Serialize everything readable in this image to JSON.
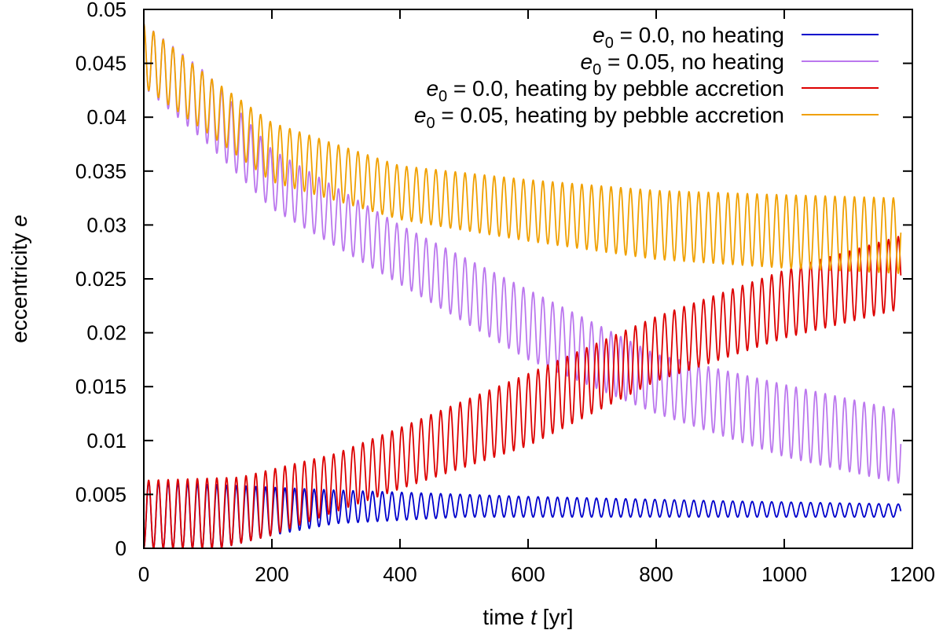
{
  "chart_data": {
    "type": "line",
    "title": "",
    "xlabel_prefix": "time ",
    "xlabel_var": "t",
    "xlabel_suffix": " [yr]",
    "ylabel_prefix": "eccentricity ",
    "ylabel_var": "e",
    "xlim": [
      0,
      1200
    ],
    "ylim": [
      0,
      0.05
    ],
    "x_ticks": [
      0,
      200,
      400,
      600,
      800,
      1000,
      1200
    ],
    "x_tick_labels": [
      "0",
      "200",
      "400",
      "600",
      "800",
      "1000",
      "1200"
    ],
    "y_ticks": [
      0,
      0.005,
      0.01,
      0.015,
      0.02,
      0.025,
      0.03,
      0.035,
      0.04,
      0.045,
      0.05
    ],
    "y_tick_labels": [
      "0",
      "0.005",
      "0.01",
      "0.015",
      "0.02",
      "0.025",
      "0.03",
      "0.035",
      "0.04",
      "0.045",
      "0.05"
    ],
    "grid": false,
    "legend_position": "top-right",
    "oscillation_period_yr": 15.2,
    "series": [
      {
        "name": "e0 = 0.0, no heating",
        "legend_var": "e",
        "legend_sub": "0",
        "legend_rest": " = 0.0, no heating",
        "color": "#0000cc",
        "x_end": 1182,
        "upper": [
          [
            0,
            0.0062
          ],
          [
            150,
            0.0058
          ],
          [
            300,
            0.0054
          ],
          [
            600,
            0.0048
          ],
          [
            900,
            0.0044
          ],
          [
            1182,
            0.0041
          ]
        ],
        "lower": [
          [
            0,
            0.0
          ],
          [
            120,
            0.0
          ],
          [
            200,
            0.0012
          ],
          [
            300,
            0.0023
          ],
          [
            500,
            0.0029
          ],
          [
            800,
            0.0029
          ],
          [
            1182,
            0.0029
          ]
        ],
        "phase": 0.5
      },
      {
        "name": "e0 = 0.05, no heating",
        "legend_var": "e",
        "legend_sub": "0",
        "legend_rest": " = 0.05, no heating",
        "color": "#bb77ee",
        "x_end": 1182,
        "upper": [
          [
            0,
            0.0487
          ],
          [
            100,
            0.044
          ],
          [
            200,
            0.037
          ],
          [
            400,
            0.03
          ],
          [
            600,
            0.024
          ],
          [
            800,
            0.018
          ],
          [
            1000,
            0.0152
          ],
          [
            1182,
            0.0128
          ]
        ],
        "lower": [
          [
            0,
            0.0428
          ],
          [
            100,
            0.0375
          ],
          [
            200,
            0.0315
          ],
          [
            400,
            0.0245
          ],
          [
            600,
            0.0175
          ],
          [
            800,
            0.0125
          ],
          [
            1000,
            0.0085
          ],
          [
            1182,
            0.006
          ]
        ],
        "phase": 0.0
      },
      {
        "name": "e0 = 0.0, heating by pebble accretion",
        "legend_var": "e",
        "legend_sub": "0",
        "legend_rest": " = 0.0, heating by pebble accretion",
        "color": "#dd0000",
        "x_end": 1182,
        "upper": [
          [
            0,
            0.0063
          ],
          [
            150,
            0.0066
          ],
          [
            300,
            0.0088
          ],
          [
            400,
            0.0112
          ],
          [
            600,
            0.0162
          ],
          [
            800,
            0.0215
          ],
          [
            1000,
            0.0258
          ],
          [
            1182,
            0.029
          ]
        ],
        "lower": [
          [
            0,
            0.0
          ],
          [
            120,
            0.0
          ],
          [
            200,
            0.0012
          ],
          [
            300,
            0.0034
          ],
          [
            400,
            0.0055
          ],
          [
            600,
            0.0095
          ],
          [
            800,
            0.0155
          ],
          [
            1000,
            0.0195
          ],
          [
            1182,
            0.0222
          ]
        ],
        "phase": 0.5
      },
      {
        "name": "e0 = 0.05, heating by pebble accretion",
        "legend_var": "e",
        "legend_sub": "0",
        "legend_rest": " = 0.05, heating by pebble accretion",
        "color": "#f0a000",
        "x_end": 1182,
        "upper": [
          [
            0,
            0.0487
          ],
          [
            100,
            0.0438
          ],
          [
            200,
            0.0395
          ],
          [
            400,
            0.0355
          ],
          [
            600,
            0.0342
          ],
          [
            800,
            0.0332
          ],
          [
            1000,
            0.0328
          ],
          [
            1182,
            0.0325
          ]
        ],
        "lower": [
          [
            0,
            0.0428
          ],
          [
            100,
            0.0385
          ],
          [
            200,
            0.034
          ],
          [
            400,
            0.0305
          ],
          [
            600,
            0.0285
          ],
          [
            800,
            0.0268
          ],
          [
            1000,
            0.026
          ],
          [
            1182,
            0.0255
          ]
        ],
        "phase": 0.0
      }
    ]
  }
}
